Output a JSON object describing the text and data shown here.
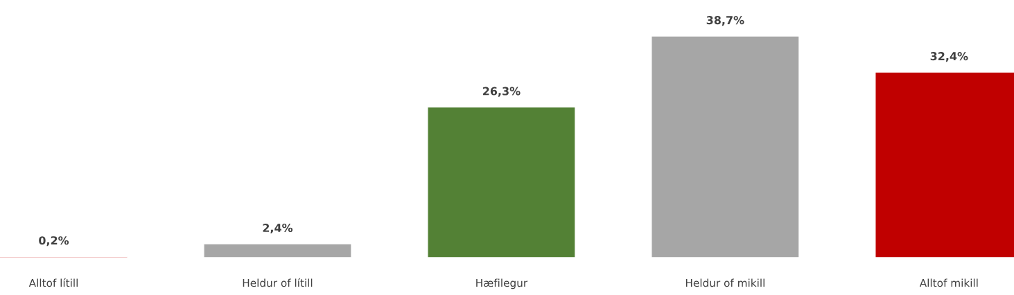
{
  "chart_data": {
    "type": "bar",
    "categories": [
      "Alltof lítill",
      "Heldur of lítill",
      "Hæfilegur",
      "Heldur of mikill",
      "Alltof mikill"
    ],
    "values": [
      0.2,
      2.4,
      26.3,
      38.7,
      32.4
    ],
    "colors": [
      "#c00000",
      "#a6a6a6",
      "#538135",
      "#a6a6a6",
      "#c00000"
    ],
    "value_labels": [
      "0,2%",
      "2,4%",
      "26,3%",
      "38,7%",
      "32,4%"
    ],
    "grid": false,
    "legend": false
  }
}
